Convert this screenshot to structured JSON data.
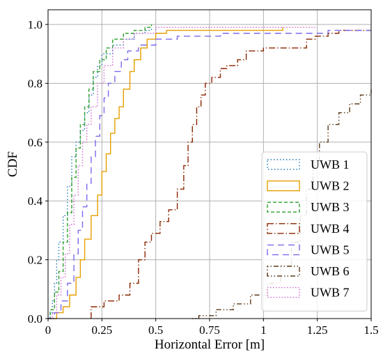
{
  "chart_data": {
    "type": "line",
    "title": "",
    "xlabel": "Horizontal Error [m]",
    "ylabel": "CDF",
    "xlim": [
      0,
      1.5
    ],
    "ylim": [
      0,
      1.05
    ],
    "x_ticks": [
      0,
      0.25,
      0.5,
      0.75,
      1,
      1.25,
      1.5
    ],
    "x_tick_labels": [
      "0",
      "0.25",
      "0.5",
      "0.75",
      "1",
      "1.25",
      "1.5"
    ],
    "y_ticks": [
      0,
      0.2,
      0.4,
      0.6,
      0.8,
      1.0
    ],
    "y_tick_labels": [
      "0.0",
      "0.2",
      "0.4",
      "0.6",
      "0.8",
      "1.0"
    ],
    "grid": true,
    "legend_position": "right",
    "series": [
      {
        "name": "UWB 1",
        "color": "#1f77b4",
        "dash": "1.5,3",
        "points": [
          [
            0,
            0
          ],
          [
            0.01,
            0.02
          ],
          [
            0.02,
            0.06
          ],
          [
            0.03,
            0.12
          ],
          [
            0.04,
            0.2
          ],
          [
            0.05,
            0.26
          ],
          [
            0.07,
            0.35
          ],
          [
            0.09,
            0.45
          ],
          [
            0.11,
            0.55
          ],
          [
            0.13,
            0.6
          ],
          [
            0.15,
            0.64
          ],
          [
            0.17,
            0.7
          ],
          [
            0.19,
            0.76
          ],
          [
            0.21,
            0.82
          ],
          [
            0.23,
            0.86
          ],
          [
            0.25,
            0.9
          ],
          [
            0.3,
            0.93
          ],
          [
            0.35,
            0.95
          ],
          [
            0.4,
            0.97
          ],
          [
            0.45,
            0.98
          ],
          [
            0.48,
            0.99
          ]
        ]
      },
      {
        "name": "UWB 2",
        "color": "#e69f00",
        "dash": "",
        "points": [
          [
            0,
            0
          ],
          [
            0.04,
            0.02
          ],
          [
            0.07,
            0.04
          ],
          [
            0.1,
            0.08
          ],
          [
            0.13,
            0.14
          ],
          [
            0.15,
            0.2
          ],
          [
            0.17,
            0.27
          ],
          [
            0.2,
            0.35
          ],
          [
            0.23,
            0.42
          ],
          [
            0.25,
            0.5
          ],
          [
            0.27,
            0.56
          ],
          [
            0.29,
            0.63
          ],
          [
            0.31,
            0.68
          ],
          [
            0.33,
            0.72
          ],
          [
            0.35,
            0.78
          ],
          [
            0.38,
            0.84
          ],
          [
            0.4,
            0.88
          ],
          [
            0.43,
            0.92
          ],
          [
            0.46,
            0.95
          ],
          [
            0.5,
            0.97
          ],
          [
            0.55,
            0.98
          ],
          [
            1.09,
            0.98
          ],
          [
            1.09,
            0.99
          ]
        ]
      },
      {
        "name": "UWB 3",
        "color": "#2ca02c",
        "dash": "5,3",
        "points": [
          [
            0,
            0
          ],
          [
            0.01,
            0.03
          ],
          [
            0.03,
            0.09
          ],
          [
            0.05,
            0.16
          ],
          [
            0.07,
            0.26
          ],
          [
            0.09,
            0.36
          ],
          [
            0.11,
            0.48
          ],
          [
            0.13,
            0.58
          ],
          [
            0.15,
            0.66
          ],
          [
            0.17,
            0.72
          ],
          [
            0.19,
            0.78
          ],
          [
            0.21,
            0.84
          ],
          [
            0.24,
            0.88
          ],
          [
            0.27,
            0.92
          ],
          [
            0.3,
            0.95
          ],
          [
            0.35,
            0.97
          ],
          [
            0.4,
            0.98
          ],
          [
            0.45,
            0.99
          ],
          [
            0.48,
            1.0
          ]
        ]
      },
      {
        "name": "UWB 4",
        "color": "#8b2500",
        "dash": "9,3,1.5,3",
        "points": [
          [
            0.2,
            0
          ],
          [
            0.2,
            0.04
          ],
          [
            0.26,
            0.06
          ],
          [
            0.33,
            0.08
          ],
          [
            0.38,
            0.12
          ],
          [
            0.42,
            0.2
          ],
          [
            0.45,
            0.26
          ],
          [
            0.48,
            0.29
          ],
          [
            0.52,
            0.33
          ],
          [
            0.56,
            0.37
          ],
          [
            0.6,
            0.44
          ],
          [
            0.63,
            0.52
          ],
          [
            0.65,
            0.6
          ],
          [
            0.67,
            0.66
          ],
          [
            0.69,
            0.72
          ],
          [
            0.71,
            0.76
          ],
          [
            0.73,
            0.8
          ],
          [
            0.76,
            0.82
          ],
          [
            0.8,
            0.85
          ],
          [
            0.83,
            0.86
          ],
          [
            0.88,
            0.88
          ],
          [
            0.92,
            0.91
          ],
          [
            1.0,
            0.92
          ],
          [
            1.18,
            0.92
          ],
          [
            1.2,
            0.95
          ],
          [
            1.24,
            0.96
          ],
          [
            1.3,
            0.97
          ],
          [
            1.35,
            0.98
          ],
          [
            1.5,
            0.98
          ]
        ]
      },
      {
        "name": "UWB 5",
        "color": "#7b68ee",
        "dash": "9,6",
        "points": [
          [
            0,
            0
          ],
          [
            0.03,
            0.02
          ],
          [
            0.06,
            0.06
          ],
          [
            0.09,
            0.12
          ],
          [
            0.12,
            0.22
          ],
          [
            0.14,
            0.3
          ],
          [
            0.16,
            0.38
          ],
          [
            0.18,
            0.46
          ],
          [
            0.2,
            0.55
          ],
          [
            0.22,
            0.62
          ],
          [
            0.24,
            0.69
          ],
          [
            0.26,
            0.75
          ],
          [
            0.28,
            0.8
          ],
          [
            0.31,
            0.84
          ],
          [
            0.34,
            0.88
          ],
          [
            0.37,
            0.91
          ],
          [
            0.42,
            0.93
          ],
          [
            0.5,
            0.95
          ],
          [
            0.6,
            0.96
          ],
          [
            0.8,
            0.97
          ],
          [
            1.1,
            0.97
          ],
          [
            1.3,
            0.98
          ],
          [
            1.5,
            0.98
          ]
        ]
      },
      {
        "name": "UWB 6",
        "color": "#5a3a1a",
        "dash": "1.5,3,1.5,3,7,3",
        "points": [
          [
            0.67,
            0
          ],
          [
            0.7,
            0.01
          ],
          [
            0.78,
            0.03
          ],
          [
            0.86,
            0.05
          ],
          [
            0.94,
            0.08
          ],
          [
            1.02,
            0.12
          ],
          [
            1.08,
            0.18
          ],
          [
            1.13,
            0.26
          ],
          [
            1.17,
            0.35
          ],
          [
            1.2,
            0.44
          ],
          [
            1.23,
            0.52
          ],
          [
            1.26,
            0.6
          ],
          [
            1.3,
            0.66
          ],
          [
            1.35,
            0.7
          ],
          [
            1.4,
            0.73
          ],
          [
            1.45,
            0.76
          ],
          [
            1.5,
            0.78
          ]
        ]
      },
      {
        "name": "UWB 7",
        "color": "#cc66cc",
        "dash": "1.5,2.5",
        "points": [
          [
            0,
            0
          ],
          [
            0.02,
            0.02
          ],
          [
            0.04,
            0.08
          ],
          [
            0.06,
            0.14
          ],
          [
            0.08,
            0.22
          ],
          [
            0.1,
            0.32
          ],
          [
            0.12,
            0.42
          ],
          [
            0.14,
            0.52
          ],
          [
            0.16,
            0.6
          ],
          [
            0.18,
            0.66
          ],
          [
            0.2,
            0.72
          ],
          [
            0.23,
            0.8
          ],
          [
            0.26,
            0.86
          ],
          [
            0.3,
            0.92
          ],
          [
            0.35,
            0.95
          ],
          [
            0.4,
            0.97
          ],
          [
            0.5,
            0.99
          ],
          [
            1.25,
            0.99
          ]
        ]
      }
    ]
  }
}
